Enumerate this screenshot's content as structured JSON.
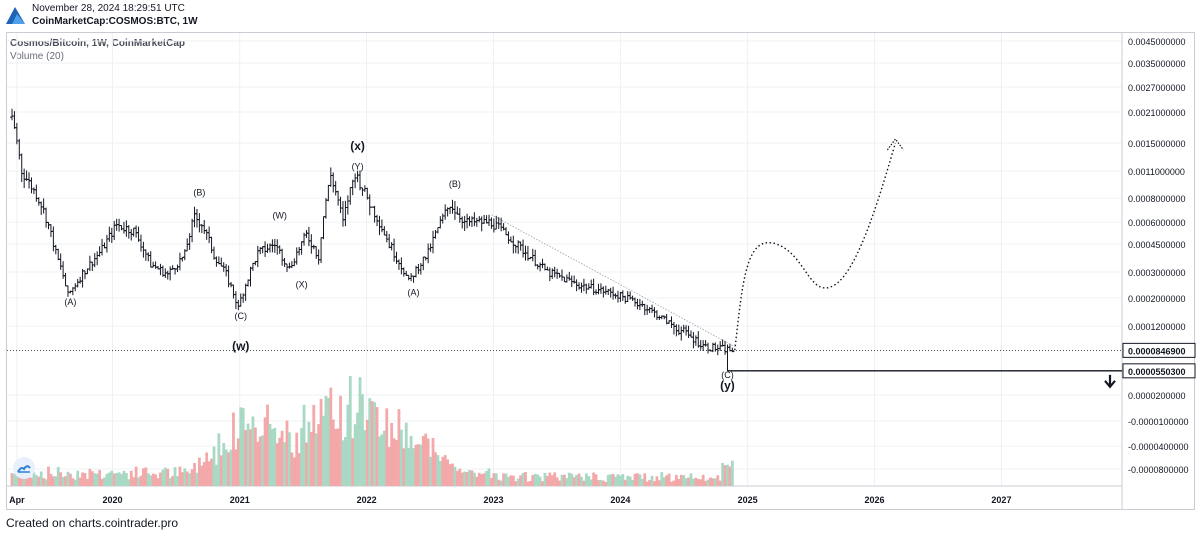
{
  "header": {
    "timestamp": "November 28, 2024 18:29:51 UTC",
    "symbol_line": "CoinMarketCap:COSMOS:BTC, 1W"
  },
  "chart_header": {
    "symbol_title": "Cosmos/Bitcoin, 1W, CoinMarketCap",
    "volume_title": "Volume (20)"
  },
  "footer": {
    "text": "Created on charts.cointrader.pro"
  },
  "colors": {
    "candle": "#131722",
    "vol_up": "#a9d9c4",
    "vol_down": "#f3a9a9",
    "grid": "#eef0f3",
    "axis_text": "#131722"
  },
  "chart_data": {
    "type": "line",
    "title": "Cosmos/Bitcoin, 1W, CoinMarketCap",
    "x_ticks": [
      "Apr",
      "2020",
      "2021",
      "2022",
      "2023",
      "2024",
      "2025",
      "2026",
      "2027"
    ],
    "y_ticks": [
      "0.0045000000",
      "0.0035000000",
      "0.0027000000",
      "0.0021000000",
      "0.0015000000",
      "0.0011000000",
      "0.0008000000",
      "0.0006000000",
      "0.0004500000",
      "0.0003000000",
      "0.0002000000",
      "0.0001200000",
      "0.0000200000",
      "-0.0000100000",
      "-0.0000400000",
      "-0.0000800000"
    ],
    "price_labels": {
      "current": "0.0000846900",
      "level": "0.0000550300"
    },
    "xlim": [
      "2019-03-18",
      "2027-11-15"
    ],
    "ylim": [
      "-0.0000800000",
      "0.0045000000"
    ],
    "series": [
      {
        "name": "",
        "type": "weekly closes",
        "points": [
          [
            "2019-03-18",
            0.002
          ],
          [
            "2019-04-15",
            0.0011
          ],
          [
            "2019-06-10",
            0.00075
          ],
          [
            "2019-07-22",
            0.0004
          ],
          [
            "2019-08-26",
            0.00021
          ],
          [
            "2019-10-14",
            0.00031
          ],
          [
            "2019-12-02",
            0.00042
          ],
          [
            "2020-01-13",
            0.00058
          ],
          [
            "2020-03-02",
            0.00054
          ],
          [
            "2020-04-20",
            0.00034
          ],
          [
            "2020-06-08",
            0.00029
          ],
          [
            "2020-07-27",
            0.00039
          ],
          [
            "2020-08-24",
            0.00064
          ],
          [
            "2020-09-14",
            0.00059
          ],
          [
            "2020-10-19",
            0.00039
          ],
          [
            "2020-11-23",
            0.00029
          ],
          [
            "2020-12-28",
            0.00017
          ],
          [
            "2021-01-25",
            0.00028
          ],
          [
            "2021-02-22",
            0.0004
          ],
          [
            "2021-04-12",
            0.00045
          ],
          [
            "2021-05-24",
            0.00032
          ],
          [
            "2021-07-12",
            0.00051
          ],
          [
            "2021-08-16",
            0.00038
          ],
          [
            "2021-09-20",
            0.00105
          ],
          [
            "2021-10-25",
            0.0006
          ],
          [
            "2021-11-29",
            0.00108
          ],
          [
            "2022-01-10",
            0.00075
          ],
          [
            "2022-03-07",
            0.00045
          ],
          [
            "2022-05-02",
            0.00026
          ],
          [
            "2022-06-27",
            0.0004
          ],
          [
            "2022-08-29",
            0.00075
          ],
          [
            "2022-10-10",
            0.0006
          ],
          [
            "2022-12-26",
            0.0006
          ],
          [
            "2023-03-13",
            0.00044
          ],
          [
            "2023-06-05",
            0.0003
          ],
          [
            "2023-09-04",
            0.00025
          ],
          [
            "2023-12-04",
            0.00022
          ],
          [
            "2024-03-04",
            0.00018
          ],
          [
            "2024-06-03",
            0.00012
          ],
          [
            "2024-09-02",
            9e-05
          ],
          [
            "2024-11-18",
            8.5e-05
          ]
        ]
      }
    ],
    "volume": {
      "name": "Volume (20)",
      "peak_period": "2021-2022"
    },
    "wave_labels": [
      {
        "text": "(A)",
        "date": "2019-09-02",
        "price": 0.00018
      },
      {
        "text": "(C)",
        "date": "2021-01-04",
        "price": 0.00014
      },
      {
        "text": "(w)",
        "date": "2021-01-04",
        "price": 8.5e-05,
        "bold": true
      },
      {
        "text": "(W)",
        "date": "2021-04-26",
        "price": 0.00063
      },
      {
        "text": "(X)",
        "date": "2021-06-28",
        "price": 0.00024
      },
      {
        "text": "(B)",
        "date": "2020-09-07",
        "price": 0.00083
      },
      {
        "text": "(Y)",
        "date": "2021-12-06",
        "price": 0.00112
      },
      {
        "text": "(x)",
        "date": "2021-12-06",
        "price": 0.0014,
        "bold": true
      },
      {
        "text": "(A)",
        "date": "2022-05-16",
        "price": 0.00021
      },
      {
        "text": "(B)",
        "date": "2022-09-12",
        "price": 0.00092
      },
      {
        "text": "(C)",
        "date": "2024-11-04",
        "price": 4.5e-05
      },
      {
        "text": "(y)",
        "date": "2024-11-04",
        "price": 2.8e-05,
        "bold": true
      }
    ],
    "annotations": {
      "trendline": [
        [
          "2022-12-26",
          0.00066
        ],
        [
          "2024-11-25",
          9e-05
        ]
      ],
      "projection": [
        [
          "2024-11-25",
          8.5e-05
        ],
        [
          "2025-03-24",
          0.00045
        ],
        [
          "2025-09-08",
          0.00025
        ],
        [
          "2026-03-02",
          0.0015
        ]
      ],
      "horizontal_line": 8.469e-05,
      "support_box_level": 5.503e-05,
      "down_arrow": true
    },
    "grid": true,
    "legend": "none"
  }
}
